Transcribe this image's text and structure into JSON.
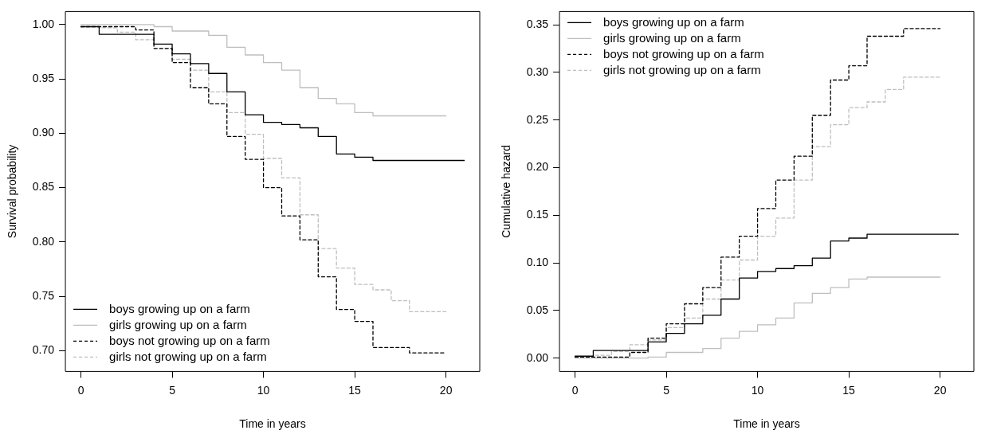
{
  "chart_data": [
    {
      "type": "step",
      "xlabel": "Time in years",
      "ylabel": "Survival probability",
      "xlim": [
        -0.85,
        21.85
      ],
      "xticks": [
        0,
        5,
        10,
        15,
        20
      ],
      "ylim": [
        0.681,
        1.012
      ],
      "yticks": [
        {
          "value": 0.7,
          "label": "0.70"
        },
        {
          "value": 0.75,
          "label": "0.75"
        },
        {
          "value": 0.8,
          "label": "0.80"
        },
        {
          "value": 0.85,
          "label": "0.85"
        },
        {
          "value": 0.9,
          "label": "0.90"
        },
        {
          "value": 0.95,
          "label": "0.95"
        },
        {
          "value": 1.0,
          "label": "1.00"
        }
      ],
      "grid": false,
      "legend": "bottom left",
      "marker": "none",
      "series": [
        {
          "name": "boys growing up on a farm",
          "color": "#000000",
          "line_style": "solid",
          "x": [
            0,
            1,
            4,
            5,
            6,
            7,
            8,
            9,
            10,
            11,
            12,
            13,
            14,
            15,
            16,
            21
          ],
          "values": [
            0.998,
            0.991,
            0.982,
            0.973,
            0.964,
            0.955,
            0.938,
            0.917,
            0.91,
            0.908,
            0.905,
            0.897,
            0.881,
            0.878,
            0.875,
            0.875
          ]
        },
        {
          "name": "girls growing up on a farm",
          "color": "#bebebe",
          "line_style": "solid",
          "x": [
            0,
            4,
            5,
            7,
            8,
            9,
            10,
            11,
            12,
            13,
            14,
            15,
            16,
            20
          ],
          "values": [
            1.0,
            0.998,
            0.994,
            0.99,
            0.979,
            0.972,
            0.965,
            0.958,
            0.942,
            0.932,
            0.927,
            0.919,
            0.916,
            0.916
          ]
        },
        {
          "name": "boys not growing up on a farm",
          "color": "#000000",
          "line_style": "dashed",
          "x": [
            0,
            3,
            4,
            5,
            6,
            7,
            8,
            9,
            10,
            11,
            12,
            13,
            14,
            15,
            16,
            18,
            20
          ],
          "values": [
            0.998,
            0.995,
            0.978,
            0.965,
            0.942,
            0.927,
            0.897,
            0.876,
            0.85,
            0.824,
            0.802,
            0.768,
            0.738,
            0.727,
            0.703,
            0.698,
            0.698
          ]
        },
        {
          "name": "girls not growing up on a farm",
          "color": "#bebebe",
          "line_style": "dashed",
          "x": [
            0,
            1,
            2,
            3,
            4,
            5,
            6,
            7,
            8,
            9,
            10,
            11,
            12,
            13,
            14,
            15,
            16,
            17,
            18,
            20
          ],
          "values": [
            0.998,
            0.997,
            0.993,
            0.986,
            0.978,
            0.968,
            0.958,
            0.938,
            0.919,
            0.899,
            0.877,
            0.859,
            0.825,
            0.794,
            0.776,
            0.761,
            0.756,
            0.746,
            0.736,
            0.736
          ]
        }
      ]
    },
    {
      "type": "step",
      "xlabel": "Time in years",
      "ylabel": "Cumulative hazard",
      "xlim": [
        -0.85,
        21.85
      ],
      "xticks": [
        0,
        5,
        10,
        15,
        20
      ],
      "ylim": [
        -0.014,
        0.364
      ],
      "yticks": [
        {
          "value": 0,
          "label": "0.00"
        },
        {
          "value": 0.05,
          "label": "0.05"
        },
        {
          "value": 0.1,
          "label": "0.10"
        },
        {
          "value": 0.15,
          "label": "0.15"
        },
        {
          "value": 0.2,
          "label": "0.20"
        },
        {
          "value": 0.25,
          "label": "0.25"
        },
        {
          "value": 0.3,
          "label": "0.30"
        },
        {
          "value": 0.35,
          "label": "0.35"
        }
      ],
      "grid": false,
      "legend": "top left",
      "marker": "none",
      "series": [
        {
          "name": "boys growing up on a farm",
          "color": "#000000",
          "line_style": "solid",
          "x": [
            0,
            1,
            4,
            5,
            6,
            7,
            8,
            9,
            10,
            11,
            12,
            13,
            14,
            15,
            16,
            21
          ],
          "values": [
            0.002,
            0.008,
            0.017,
            0.026,
            0.036,
            0.045,
            0.062,
            0.084,
            0.091,
            0.094,
            0.097,
            0.105,
            0.123,
            0.126,
            0.13,
            0.13
          ]
        },
        {
          "name": "girls growing up on a farm",
          "color": "#bebebe",
          "line_style": "solid",
          "x": [
            0,
            4,
            5,
            7,
            8,
            9,
            10,
            11,
            12,
            13,
            14,
            15,
            16,
            20
          ],
          "values": [
            0.0,
            0.001,
            0.006,
            0.01,
            0.021,
            0.028,
            0.035,
            0.042,
            0.058,
            0.068,
            0.074,
            0.083,
            0.085,
            0.085
          ]
        },
        {
          "name": "boys not growing up on a farm",
          "color": "#000000",
          "line_style": "dashed",
          "x": [
            0,
            3,
            4,
            5,
            6,
            7,
            8,
            9,
            10,
            11,
            12,
            13,
            14,
            15,
            16,
            18,
            20
          ],
          "values": [
            0.001,
            0.006,
            0.021,
            0.036,
            0.057,
            0.074,
            0.106,
            0.128,
            0.157,
            0.187,
            0.212,
            0.255,
            0.292,
            0.307,
            0.338,
            0.346,
            0.346
          ]
        },
        {
          "name": "girls not growing up on a farm",
          "color": "#bebebe",
          "line_style": "dashed",
          "x": [
            0,
            1,
            2,
            3,
            4,
            5,
            6,
            7,
            8,
            9,
            10,
            11,
            12,
            13,
            14,
            15,
            16,
            17,
            18,
            20
          ],
          "values": [
            0.001,
            0.003,
            0.007,
            0.014,
            0.019,
            0.032,
            0.042,
            0.062,
            0.082,
            0.103,
            0.128,
            0.147,
            0.187,
            0.222,
            0.245,
            0.263,
            0.269,
            0.282,
            0.295,
            0.295
          ]
        }
      ]
    }
  ]
}
